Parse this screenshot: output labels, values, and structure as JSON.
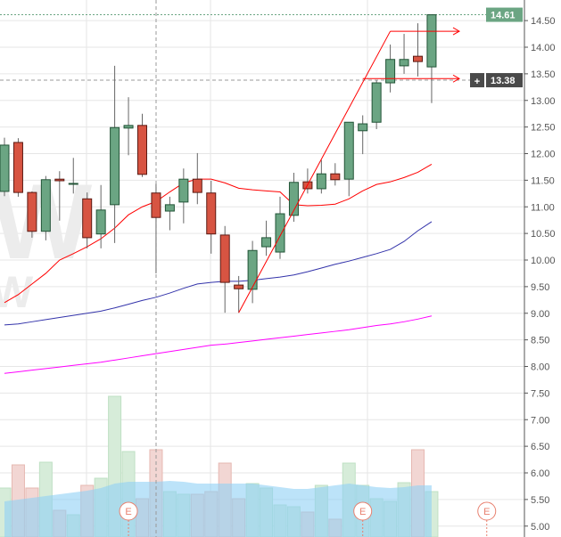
{
  "chart_data": {
    "type": "candlestick",
    "title": "",
    "price_axis": {
      "min": 4.8,
      "max": 14.9,
      "ticks": [
        "5.00",
        "5.50",
        "6.00",
        "6.50",
        "7.00",
        "7.50",
        "8.00",
        "8.50",
        "9.00",
        "9.50",
        "10.00",
        "10.50",
        "11.00",
        "11.50",
        "12.00",
        "12.50",
        "13.00",
        "13.50",
        "14.00",
        "14.50"
      ]
    },
    "last_price_label": "14.61",
    "last_price": 14.61,
    "crosshair_price_label": "13.38",
    "crosshair_price": 13.38,
    "crosshair_plus": "+",
    "colors": {
      "up": "#6ba583",
      "down": "#d75442",
      "up_border": "#225437",
      "down_border": "#5b1a13",
      "ma20": "#ff0000",
      "ma50": "#3333aa",
      "ma200": "#ff00ff",
      "last_price_bg": "#6ba583",
      "crosshair_bg": "#4a4a4a",
      "volume_ma": "#8fd0f5"
    },
    "candles": [
      {
        "o": 11.29,
        "h": 12.3,
        "l": 11.2,
        "c": 12.16
      },
      {
        "o": 12.21,
        "h": 12.29,
        "l": 11.19,
        "c": 11.27
      },
      {
        "o": 11.27,
        "h": 11.29,
        "l": 10.42,
        "c": 10.54
      },
      {
        "o": 10.54,
        "h": 11.58,
        "l": 10.37,
        "c": 11.51
      },
      {
        "o": 11.52,
        "h": 11.67,
        "l": 10.74,
        "c": 11.49
      },
      {
        "o": 11.43,
        "h": 11.92,
        "l": 11.25,
        "c": 11.44
      },
      {
        "o": 11.15,
        "h": 11.27,
        "l": 10.22,
        "c": 10.42
      },
      {
        "o": 10.49,
        "h": 11.41,
        "l": 10.22,
        "c": 10.94
      },
      {
        "o": 11.04,
        "h": 13.65,
        "l": 10.32,
        "c": 12.49
      },
      {
        "o": 12.48,
        "h": 13.06,
        "l": 11.97,
        "c": 12.53
      },
      {
        "o": 12.53,
        "h": 12.75,
        "l": 11.56,
        "c": 11.61
      },
      {
        "o": 11.26,
        "h": 11.43,
        "l": 9.75,
        "c": 10.8
      },
      {
        "o": 10.92,
        "h": 11.19,
        "l": 10.56,
        "c": 11.04
      },
      {
        "o": 11.09,
        "h": 11.72,
        "l": 10.69,
        "c": 11.52
      },
      {
        "o": 11.52,
        "h": 12.01,
        "l": 11.05,
        "c": 11.27
      },
      {
        "o": 11.26,
        "h": 11.49,
        "l": 10.12,
        "c": 10.49
      },
      {
        "o": 10.47,
        "h": 10.64,
        "l": 9.01,
        "c": 9.58
      },
      {
        "o": 9.53,
        "h": 9.7,
        "l": 9.01,
        "c": 9.46
      },
      {
        "o": 9.45,
        "h": 10.36,
        "l": 9.19,
        "c": 10.18
      },
      {
        "o": 10.25,
        "h": 10.74,
        "l": 10.08,
        "c": 10.42
      },
      {
        "o": 10.15,
        "h": 11.19,
        "l": 10.02,
        "c": 10.87
      },
      {
        "o": 10.84,
        "h": 11.64,
        "l": 10.72,
        "c": 11.46
      },
      {
        "o": 11.47,
        "h": 11.72,
        "l": 11.25,
        "c": 11.34
      },
      {
        "o": 11.34,
        "h": 11.88,
        "l": 11.25,
        "c": 11.62
      },
      {
        "o": 11.62,
        "h": 11.82,
        "l": 11.4,
        "c": 11.51
      },
      {
        "o": 11.52,
        "h": 12.59,
        "l": 11.2,
        "c": 12.59
      },
      {
        "o": 12.43,
        "h": 12.72,
        "l": 11.99,
        "c": 12.56
      },
      {
        "o": 12.59,
        "h": 13.38,
        "l": 12.46,
        "c": 13.33
      },
      {
        "o": 13.33,
        "h": 14.05,
        "l": 13.15,
        "c": 13.77
      },
      {
        "o": 13.65,
        "h": 14.25,
        "l": 13.5,
        "c": 13.77
      },
      {
        "o": 13.83,
        "h": 14.45,
        "l": 13.45,
        "c": 13.73
      },
      {
        "o": 13.63,
        "h": 14.61,
        "l": 12.95,
        "c": 14.61
      }
    ],
    "volume_relative": [
      55,
      81,
      55,
      84,
      30,
      25,
      58,
      66,
      158,
      96,
      43,
      98,
      51,
      48,
      48,
      51,
      83,
      43,
      60,
      55,
      36,
      34,
      28,
      58,
      20,
      83,
      58,
      43,
      40,
      61,
      98,
      51
    ],
    "volume_ma_relative": [
      40,
      42,
      44,
      46,
      48,
      50,
      52,
      55,
      60,
      62,
      62,
      62,
      63,
      62,
      60,
      60,
      60,
      60,
      60,
      58,
      56,
      54,
      54,
      56,
      58,
      60,
      58,
      56,
      55,
      56,
      58,
      58
    ],
    "ma20": [
      9.2,
      9.35,
      9.55,
      9.75,
      10.0,
      10.12,
      10.25,
      10.4,
      10.6,
      10.85,
      11.0,
      11.1,
      11.28,
      11.45,
      11.52,
      11.52,
      11.45,
      11.35,
      11.32,
      11.3,
      11.28,
      11.04,
      11.02,
      11.03,
      11.05,
      11.15,
      11.3,
      11.42,
      11.47,
      11.55,
      11.65,
      11.8
    ],
    "ma50": [
      8.78,
      8.8,
      8.84,
      8.88,
      8.92,
      8.96,
      9.0,
      9.04,
      9.1,
      9.17,
      9.24,
      9.3,
      9.38,
      9.47,
      9.55,
      9.58,
      9.6,
      9.6,
      9.62,
      9.65,
      9.68,
      9.72,
      9.78,
      9.85,
      9.92,
      9.98,
      10.05,
      10.12,
      10.2,
      10.35,
      10.55,
      10.72
    ],
    "ma200": [
      7.87,
      7.9,
      7.93,
      7.96,
      7.99,
      8.02,
      8.05,
      8.08,
      8.12,
      8.16,
      8.2,
      8.24,
      8.28,
      8.32,
      8.36,
      8.4,
      8.42,
      8.45,
      8.48,
      8.51,
      8.54,
      8.57,
      8.6,
      8.63,
      8.66,
      8.69,
      8.73,
      8.77,
      8.8,
      8.84,
      8.89,
      8.95
    ],
    "trend_line": {
      "from": {
        "candle": 17,
        "price": 9.01
      },
      "to": {
        "candle": 28,
        "price": 14.3
      }
    },
    "arrows": [
      {
        "from_candle": 28,
        "price": 14.3
      },
      {
        "from_candle": 26,
        "price": 13.41
      }
    ],
    "earnings_markers": [
      {
        "label": "E",
        "candle": 9
      },
      {
        "label": "E",
        "candle": 26
      },
      {
        "label": "E",
        "candle": 35
      }
    ],
    "watermark": "W"
  }
}
